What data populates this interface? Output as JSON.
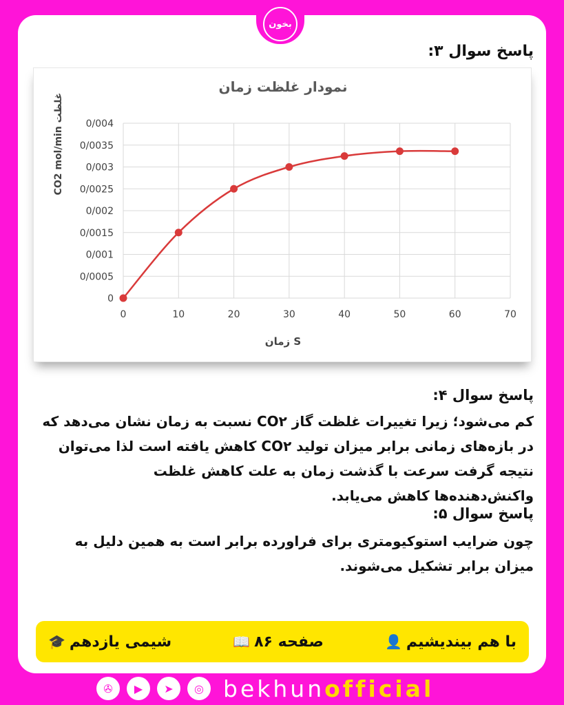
{
  "logo": {
    "text": "بخون"
  },
  "q3": {
    "heading": "پاسخ سوال ۳:"
  },
  "chart_data": {
    "type": "line",
    "title": "نمودار غلظت زمان",
    "xlabel": "زمان S",
    "ylabel": "CO2 mol/min غلظت",
    "x": [
      0,
      10,
      20,
      30,
      40,
      50,
      60
    ],
    "y": [
      0,
      0.0015,
      0.0025,
      0.003,
      0.00325,
      0.00336,
      0.00336
    ],
    "xlim": [
      0,
      70
    ],
    "ylim": [
      0,
      0.004
    ],
    "x_ticks": [
      "0",
      "10",
      "20",
      "30",
      "40",
      "50",
      "60",
      "70"
    ],
    "y_ticks": [
      "0",
      "0/0005",
      "0/001",
      "0/0015",
      "0/002",
      "0/0025",
      "0/003",
      "0/0035",
      "0/004"
    ],
    "grid": true,
    "color": "#d93a3a"
  },
  "q4": {
    "heading": "پاسخ سوال ۴:",
    "lines": [
      "کم می‌شود؛ زیرا تغییرات غلظت گاز CO۲ نسبت به زمان نشان می‌دهد که",
      "در بازه‌های زمانی برابر میزان تولید CO۲ کاهش یافته است لذا می‌توان",
      "نتیجه گرفت سرعت با گذشت زمان به علت کاهش غلظت",
      "واکنش‌دهنده‌ها کاهش می‌یابد."
    ]
  },
  "q5": {
    "heading": "پاسخ سوال ۵:",
    "lines": [
      "چون ضرایب استوکیومتری برای فراورده برابر است به همین دلیل به",
      "میزان برابر تشکیل می‌شوند."
    ]
  },
  "footer": {
    "lesson": "با هم بیندیشیم",
    "page": "صفحه ۸۶",
    "book": "شیمی یازدهم",
    "lesson_icon": "person-icon",
    "page_icon": "book-icon",
    "book_icon": "graduation-cap-icon"
  },
  "brand": {
    "part1": "bekhun",
    "part2": "official"
  },
  "colors": {
    "background": "#ff14d8",
    "footer": "#ffe600",
    "accent": "#ffd800"
  }
}
